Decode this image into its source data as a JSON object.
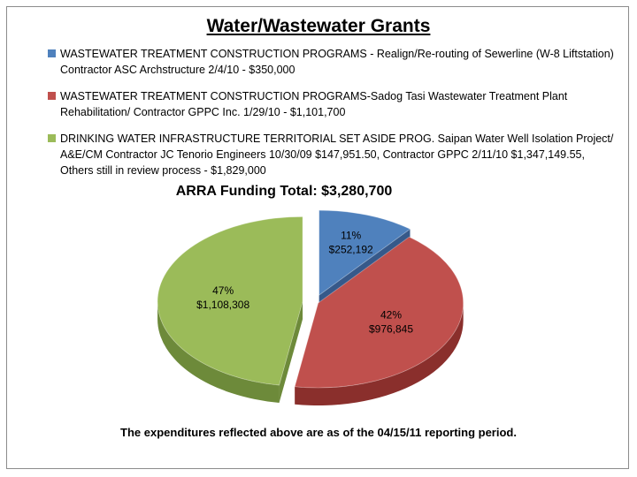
{
  "header": {
    "title": "Water/Wastewater Grants"
  },
  "legend": [
    {
      "text": "WASTEWATER TREATMENT CONSTRUCTION PROGRAMS - Realign/Re-routing of Sewerline (W-8 Liftstation) Contractor ASC Archstructure 2/4/10 - $350,000",
      "color": "#4f81bd"
    },
    {
      "text": "WASTEWATER TREATMENT CONSTRUCTION PROGRAMS-Sadog Tasi Wastewater Treatment Plant Rehabilitation/ Contractor GPPC Inc. 1/29/10 - $1,101,700",
      "color": "#c0504d"
    },
    {
      "text": "DRINKING WATER INFRASTRUCTURE TERRITORIAL SET ASIDE PROG. Saipan Water Well Isolation Project/ A&E/CM Contractor JC Tenorio Engineers 10/30/09 $147,951.50, Contractor GPPC 2/11/10 $1,347,149.55, Others still in review process - $1,829,000",
      "color": "#9bbb59"
    }
  ],
  "chart_data": {
    "type": "pie",
    "title": "ARRA Funding Total: $3,280,700",
    "slices": [
      {
        "percent_label": "11%",
        "value_label": "$252,192",
        "value": 252192,
        "color": "#4f81bd",
        "side": "#36598a"
      },
      {
        "percent_label": "42%",
        "value_label": "$976,845",
        "value": 976845,
        "color": "#c0504d",
        "side": "#8a2f2c"
      },
      {
        "percent_label": "47%",
        "value_label": "$1,108,308",
        "value": 1108308,
        "color": "#9bbb59",
        "side": "#6d8a3a"
      }
    ]
  },
  "footer": {
    "note": "The expenditures reflected above are as of the 04/15/11 reporting period."
  }
}
